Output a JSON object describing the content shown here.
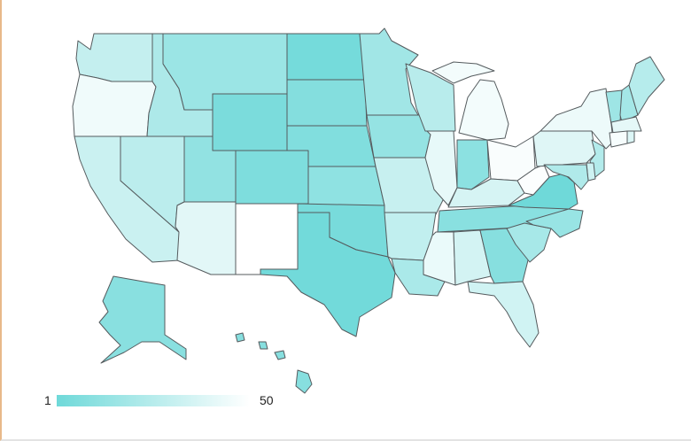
{
  "legend": {
    "min_label": "1",
    "max_label": "50",
    "color_low_rank": "#6fd9d9",
    "color_high_rank": "#ffffff"
  },
  "states": [
    {
      "name": "WA",
      "rank": 30
    },
    {
      "name": "OR",
      "rank": 45
    },
    {
      "name": "CA",
      "rank": 32
    },
    {
      "name": "NV",
      "rank": 27
    },
    {
      "name": "ID",
      "rank": 22
    },
    {
      "name": "MT",
      "rank": 16
    },
    {
      "name": "WY",
      "rank": 5
    },
    {
      "name": "UT",
      "rank": 13
    },
    {
      "name": "AZ",
      "rank": 40
    },
    {
      "name": "CO",
      "rank": 6
    },
    {
      "name": "NM",
      "rank": 50
    },
    {
      "name": "ND",
      "rank": 3
    },
    {
      "name": "SD",
      "rank": 8
    },
    {
      "name": "NE",
      "rank": 7
    },
    {
      "name": "KS",
      "rank": 12
    },
    {
      "name": "OK",
      "rank": 4
    },
    {
      "name": "TX",
      "rank": 2
    },
    {
      "name": "MN",
      "rank": 18
    },
    {
      "name": "IA",
      "rank": 14
    },
    {
      "name": "MO",
      "rank": 31
    },
    {
      "name": "AR",
      "rank": 29
    },
    {
      "name": "LA",
      "rank": 21
    },
    {
      "name": "WI",
      "rank": 26
    },
    {
      "name": "IL",
      "rank": 42
    },
    {
      "name": "MI",
      "rank": 46
    },
    {
      "name": "IN",
      "rank": 11
    },
    {
      "name": "OH",
      "rank": 48
    },
    {
      "name": "KY",
      "rank": 36
    },
    {
      "name": "TN",
      "rank": 10
    },
    {
      "name": "MS",
      "rank": 43
    },
    {
      "name": "AL",
      "rank": 35
    },
    {
      "name": "GA",
      "rank": 9
    },
    {
      "name": "FL",
      "rank": 34
    },
    {
      "name": "SC",
      "rank": 20
    },
    {
      "name": "NC",
      "rank": 15
    },
    {
      "name": "VA",
      "rank": 1
    },
    {
      "name": "WV",
      "rank": 49
    },
    {
      "name": "PA",
      "rank": 39
    },
    {
      "name": "NY",
      "rank": 44
    },
    {
      "name": "VT",
      "rank": 17
    },
    {
      "name": "NH",
      "rank": 19
    },
    {
      "name": "ME",
      "rank": 25
    },
    {
      "name": "MA",
      "rank": 41
    },
    {
      "name": "CT",
      "rank": 47
    },
    {
      "name": "RI",
      "rank": 38
    },
    {
      "name": "NJ",
      "rank": 24
    },
    {
      "name": "DE",
      "rank": 33
    },
    {
      "name": "MD",
      "rank": 23
    },
    {
      "name": "AK",
      "rank": 10
    },
    {
      "name": "HI",
      "rank": 9
    }
  ]
}
